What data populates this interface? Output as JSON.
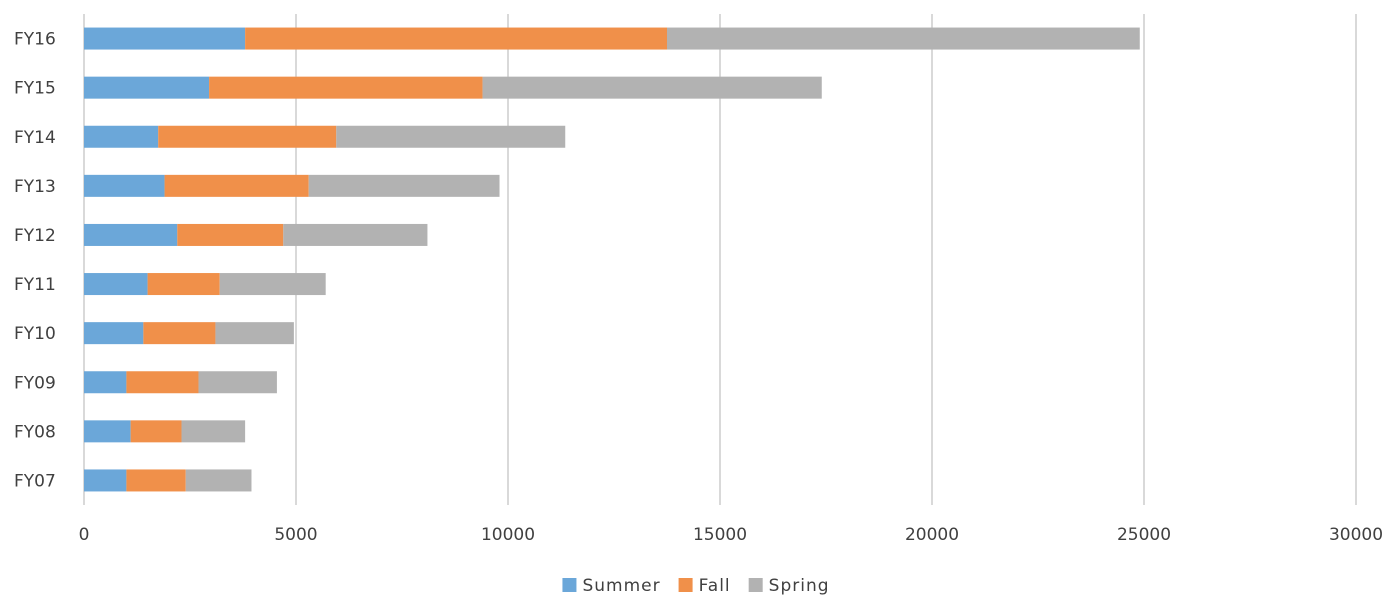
{
  "chart_data": {
    "type": "bar",
    "orientation": "horizontal",
    "stacked": true,
    "title": "",
    "xlabel": "",
    "ylabel": "",
    "categories": [
      "FY16",
      "FY15",
      "FY14",
      "FY13",
      "FY12",
      "FY11",
      "FY10",
      "FY09",
      "FY08",
      "FY07"
    ],
    "series": [
      {
        "name": "Summer",
        "color": "#6ba7d9",
        "values": [
          3800,
          2950,
          1750,
          1900,
          2200,
          1500,
          1400,
          1000,
          1100,
          1000
        ]
      },
      {
        "name": "Fall",
        "color": "#f0904a",
        "values": [
          9950,
          6450,
          4200,
          3400,
          2500,
          1700,
          1700,
          1700,
          1200,
          1400
        ]
      },
      {
        "name": "Spring",
        "color": "#b2b2b2",
        "values": [
          11150,
          8000,
          5400,
          4500,
          3400,
          2500,
          1850,
          1850,
          1500,
          1550
        ]
      }
    ],
    "x_ticks": [
      "0",
      "5000",
      "10000",
      "15000",
      "20000",
      "25000",
      "30000"
    ],
    "xlim": [
      0,
      30000
    ],
    "grid": true,
    "legend_position": "bottom"
  }
}
